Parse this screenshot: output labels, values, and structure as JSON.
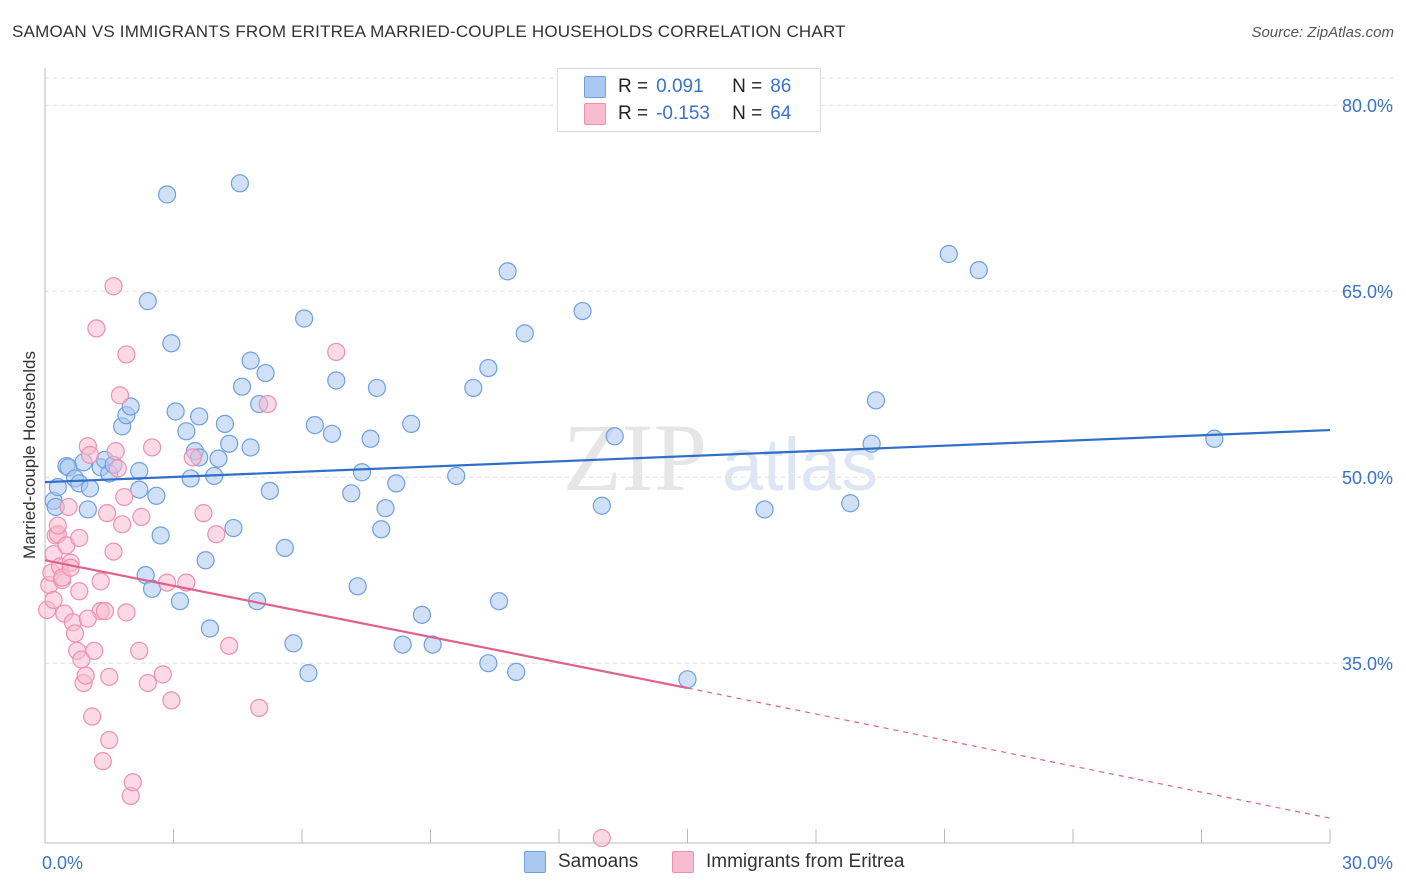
{
  "title": "SAMOAN VS IMMIGRANTS FROM ERITREA MARRIED-COUPLE HOUSEHOLDS CORRELATION CHART",
  "source": "Source: ZipAtlas.com",
  "watermark": {
    "zip": "ZIP",
    "atlas": "atlas"
  },
  "legend": {
    "r_label": "R =",
    "n_label": "N =",
    "series": [
      {
        "r": "0.091",
        "n": "86",
        "fill": "#aac8f0",
        "stroke": "#6f9fe0"
      },
      {
        "r": "-0.153",
        "n": "64",
        "fill": "#f7bcd0",
        "stroke": "#ee8fb0"
      }
    ]
  },
  "bottom_legend": [
    {
      "name": "Samoans",
      "fill": "#aac8f0",
      "stroke": "#6f9fe0"
    },
    {
      "name": "Immigrants from Eritrea",
      "fill": "#f7bcd0",
      "stroke": "#ee8fb0"
    }
  ],
  "chart_data": {
    "type": "scatter",
    "title": "SAMOAN VS IMMIGRANTS FROM ERITREA MARRIED-COUPLE HOUSEHOLDS CORRELATION CHART",
    "xlabel": "",
    "ylabel": "Married-couple Households",
    "xlim": [
      0,
      30
    ],
    "ylim": [
      20.5,
      83
    ],
    "x_tick_labels": [
      {
        "value": 0,
        "label": "0.0%"
      },
      {
        "value": 30,
        "label": "30.0%"
      }
    ],
    "y_tick_labels": [
      {
        "value": 35,
        "label": "35.0%"
      },
      {
        "value": 50,
        "label": "50.0%"
      },
      {
        "value": 65,
        "label": "65.0%"
      },
      {
        "value": 80,
        "label": "80.0%"
      }
    ],
    "grid": true,
    "series": [
      {
        "name": "Samoans",
        "color": "#6f9fe0",
        "fill": "#aac8f0",
        "trend": {
          "x": [
            0,
            30
          ],
          "y": [
            49.6,
            53.8
          ],
          "color": "#2f6fc8"
        },
        "points": [
          [
            0.2,
            48.1
          ],
          [
            0.25,
            47.6
          ],
          [
            0.5,
            50.9
          ],
          [
            0.55,
            50.8
          ],
          [
            0.7,
            49.9
          ],
          [
            0.8,
            49.5
          ],
          [
            0.9,
            51.2
          ],
          [
            1.0,
            47.4
          ],
          [
            1.05,
            49.1
          ],
          [
            1.3,
            50.8
          ],
          [
            1.4,
            51.4
          ],
          [
            1.5,
            50.3
          ],
          [
            1.8,
            54.1
          ],
          [
            1.9,
            55.0
          ],
          [
            2.0,
            55.7
          ],
          [
            2.2,
            49.0
          ],
          [
            2.35,
            42.1
          ],
          [
            2.4,
            64.2
          ],
          [
            2.5,
            41.0
          ],
          [
            2.6,
            48.5
          ],
          [
            2.7,
            45.3
          ],
          [
            2.85,
            72.8
          ],
          [
            2.95,
            60.8
          ],
          [
            3.05,
            55.3
          ],
          [
            3.15,
            40.0
          ],
          [
            3.3,
            53.7
          ],
          [
            3.4,
            49.9
          ],
          [
            3.5,
            52.1
          ],
          [
            3.6,
            51.6
          ],
          [
            3.75,
            43.3
          ],
          [
            3.85,
            37.8
          ],
          [
            3.95,
            50.1
          ],
          [
            4.05,
            51.5
          ],
          [
            4.2,
            54.3
          ],
          [
            4.3,
            52.7
          ],
          [
            4.4,
            45.9
          ],
          [
            4.55,
            73.7
          ],
          [
            4.6,
            57.3
          ],
          [
            4.8,
            59.4
          ],
          [
            4.95,
            40.0
          ],
          [
            5.0,
            55.9
          ],
          [
            5.15,
            58.4
          ],
          [
            5.25,
            48.9
          ],
          [
            5.6,
            44.3
          ],
          [
            5.8,
            36.6
          ],
          [
            6.05,
            62.8
          ],
          [
            6.15,
            34.2
          ],
          [
            6.3,
            54.2
          ],
          [
            6.7,
            53.5
          ],
          [
            6.8,
            57.8
          ],
          [
            7.15,
            48.7
          ],
          [
            7.3,
            41.2
          ],
          [
            7.4,
            50.4
          ],
          [
            7.6,
            53.1
          ],
          [
            7.75,
            57.2
          ],
          [
            7.85,
            45.8
          ],
          [
            7.95,
            47.5
          ],
          [
            8.2,
            49.5
          ],
          [
            8.35,
            36.5
          ],
          [
            8.55,
            54.3
          ],
          [
            8.8,
            38.9
          ],
          [
            9.05,
            36.5
          ],
          [
            9.6,
            50.1
          ],
          [
            10.0,
            57.2
          ],
          [
            10.35,
            58.8
          ],
          [
            10.35,
            35.0
          ],
          [
            10.6,
            40.0
          ],
          [
            10.8,
            66.6
          ],
          [
            11.0,
            34.3
          ],
          [
            11.2,
            61.6
          ],
          [
            12.55,
            63.4
          ],
          [
            13.0,
            47.7
          ],
          [
            13.3,
            53.3
          ],
          [
            16.8,
            47.4
          ],
          [
            18.8,
            47.9
          ],
          [
            19.3,
            52.7
          ],
          [
            19.4,
            56.2
          ],
          [
            21.1,
            68.0
          ],
          [
            21.8,
            66.7
          ],
          [
            27.3,
            53.1
          ],
          [
            15.0,
            33.7
          ],
          [
            0.3,
            49.2
          ],
          [
            1.6,
            51.0
          ],
          [
            2.2,
            50.5
          ],
          [
            3.6,
            54.9
          ],
          [
            4.8,
            52.4
          ]
        ]
      },
      {
        "name": "Immigrants from Eritrea",
        "color": "#ee8fb0",
        "fill": "#f7bcd0",
        "trend": {
          "x": [
            0,
            15.0
          ],
          "y": [
            43.3,
            33.0
          ],
          "color": "#e0608e"
        },
        "trend_dashed": {
          "x": [
            15.0,
            30
          ],
          "y": [
            33.0,
            22.5
          ]
        },
        "points": [
          [
            0.05,
            39.3
          ],
          [
            0.1,
            41.3
          ],
          [
            0.15,
            42.3
          ],
          [
            0.2,
            43.8
          ],
          [
            0.25,
            45.3
          ],
          [
            0.3,
            45.4
          ],
          [
            0.35,
            42.8
          ],
          [
            0.4,
            41.7
          ],
          [
            0.45,
            39.0
          ],
          [
            0.5,
            44.5
          ],
          [
            0.55,
            47.6
          ],
          [
            0.6,
            43.1
          ],
          [
            0.65,
            38.3
          ],
          [
            0.7,
            37.4
          ],
          [
            0.75,
            36.0
          ],
          [
            0.8,
            45.1
          ],
          [
            0.85,
            35.3
          ],
          [
            0.9,
            33.4
          ],
          [
            0.95,
            34.0
          ],
          [
            1.0,
            52.5
          ],
          [
            1.05,
            51.8
          ],
          [
            1.1,
            30.7
          ],
          [
            1.15,
            36.0
          ],
          [
            1.2,
            62.0
          ],
          [
            1.3,
            39.2
          ],
          [
            1.3,
            41.6
          ],
          [
            1.35,
            27.1
          ],
          [
            1.4,
            39.2
          ],
          [
            1.45,
            47.1
          ],
          [
            1.5,
            28.8
          ],
          [
            1.5,
            33.9
          ],
          [
            1.6,
            65.4
          ],
          [
            1.65,
            52.1
          ],
          [
            1.7,
            50.7
          ],
          [
            1.75,
            56.6
          ],
          [
            1.8,
            46.2
          ],
          [
            1.85,
            48.4
          ],
          [
            1.9,
            39.1
          ],
          [
            1.9,
            59.9
          ],
          [
            2.0,
            24.3
          ],
          [
            2.05,
            25.4
          ],
          [
            2.2,
            36.0
          ],
          [
            2.25,
            46.8
          ],
          [
            2.4,
            33.4
          ],
          [
            2.5,
            52.4
          ],
          [
            2.75,
            34.1
          ],
          [
            2.85,
            41.5
          ],
          [
            2.95,
            32.0
          ],
          [
            3.3,
            41.5
          ],
          [
            3.45,
            51.6
          ],
          [
            3.7,
            47.1
          ],
          [
            4.0,
            45.4
          ],
          [
            4.3,
            36.4
          ],
          [
            5.0,
            31.4
          ],
          [
            5.2,
            55.9
          ],
          [
            6.8,
            60.1
          ],
          [
            13.0,
            20.9
          ],
          [
            0.2,
            40.1
          ],
          [
            0.4,
            41.9
          ],
          [
            0.6,
            42.7
          ],
          [
            0.8,
            40.8
          ],
          [
            1.0,
            38.6
          ],
          [
            1.6,
            44.0
          ],
          [
            0.3,
            46.1
          ]
        ]
      }
    ]
  }
}
